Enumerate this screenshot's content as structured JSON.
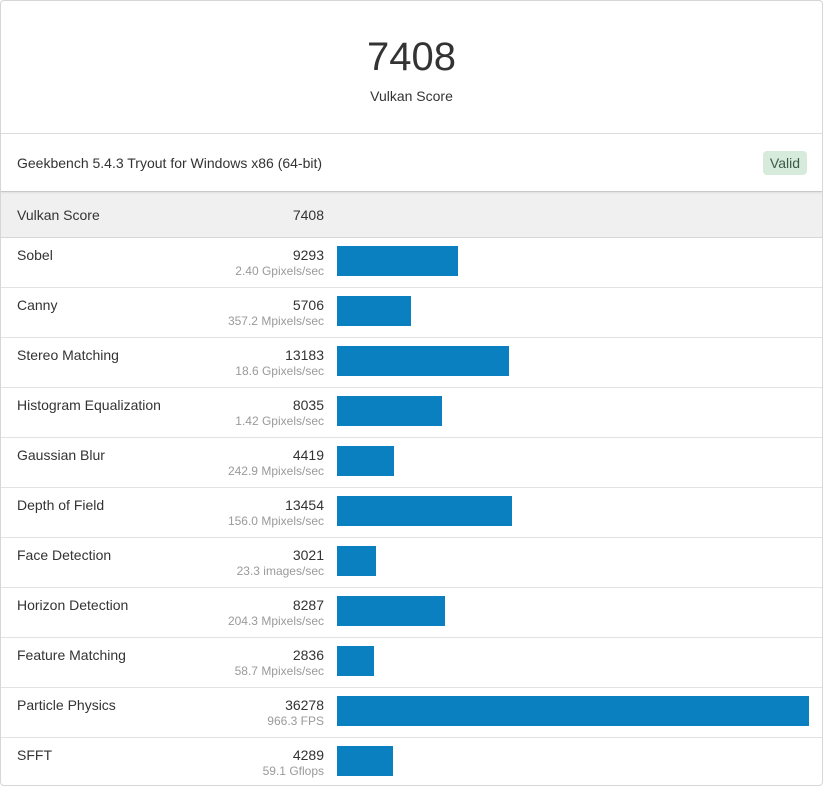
{
  "header": {
    "score": "7408",
    "score_label": "Vulkan Score"
  },
  "info": {
    "text": "Geekbench 5.4.3 Tryout for Windows x86 (64-bit)",
    "badge": "Valid"
  },
  "summary": {
    "name": "Vulkan Score",
    "value": "7408"
  },
  "colors": {
    "bar": "#0a80c0",
    "badge_bg": "#d7ebdc"
  },
  "chart_data": {
    "type": "bar",
    "orientation": "horizontal",
    "max_value": 36278,
    "rows": [
      {
        "name": "Sobel",
        "score": "9293",
        "metric": "2.40 Gpixels/sec",
        "value": 9293
      },
      {
        "name": "Canny",
        "score": "5706",
        "metric": "357.2 Mpixels/sec",
        "value": 5706
      },
      {
        "name": "Stereo Matching",
        "score": "13183",
        "metric": "18.6 Gpixels/sec",
        "value": 13183
      },
      {
        "name": "Histogram Equalization",
        "score": "8035",
        "metric": "1.42 Gpixels/sec",
        "value": 8035
      },
      {
        "name": "Gaussian Blur",
        "score": "4419",
        "metric": "242.9 Mpixels/sec",
        "value": 4419
      },
      {
        "name": "Depth of Field",
        "score": "13454",
        "metric": "156.0 Mpixels/sec",
        "value": 13454
      },
      {
        "name": "Face Detection",
        "score": "3021",
        "metric": "23.3 images/sec",
        "value": 3021
      },
      {
        "name": "Horizon Detection",
        "score": "8287",
        "metric": "204.3 Mpixels/sec",
        "value": 8287
      },
      {
        "name": "Feature Matching",
        "score": "2836",
        "metric": "58.7 Mpixels/sec",
        "value": 2836
      },
      {
        "name": "Particle Physics",
        "score": "36278",
        "metric": "966.3 FPS",
        "value": 36278
      },
      {
        "name": "SFFT",
        "score": "4289",
        "metric": "59.1 Gflops",
        "value": 4289
      }
    ]
  }
}
